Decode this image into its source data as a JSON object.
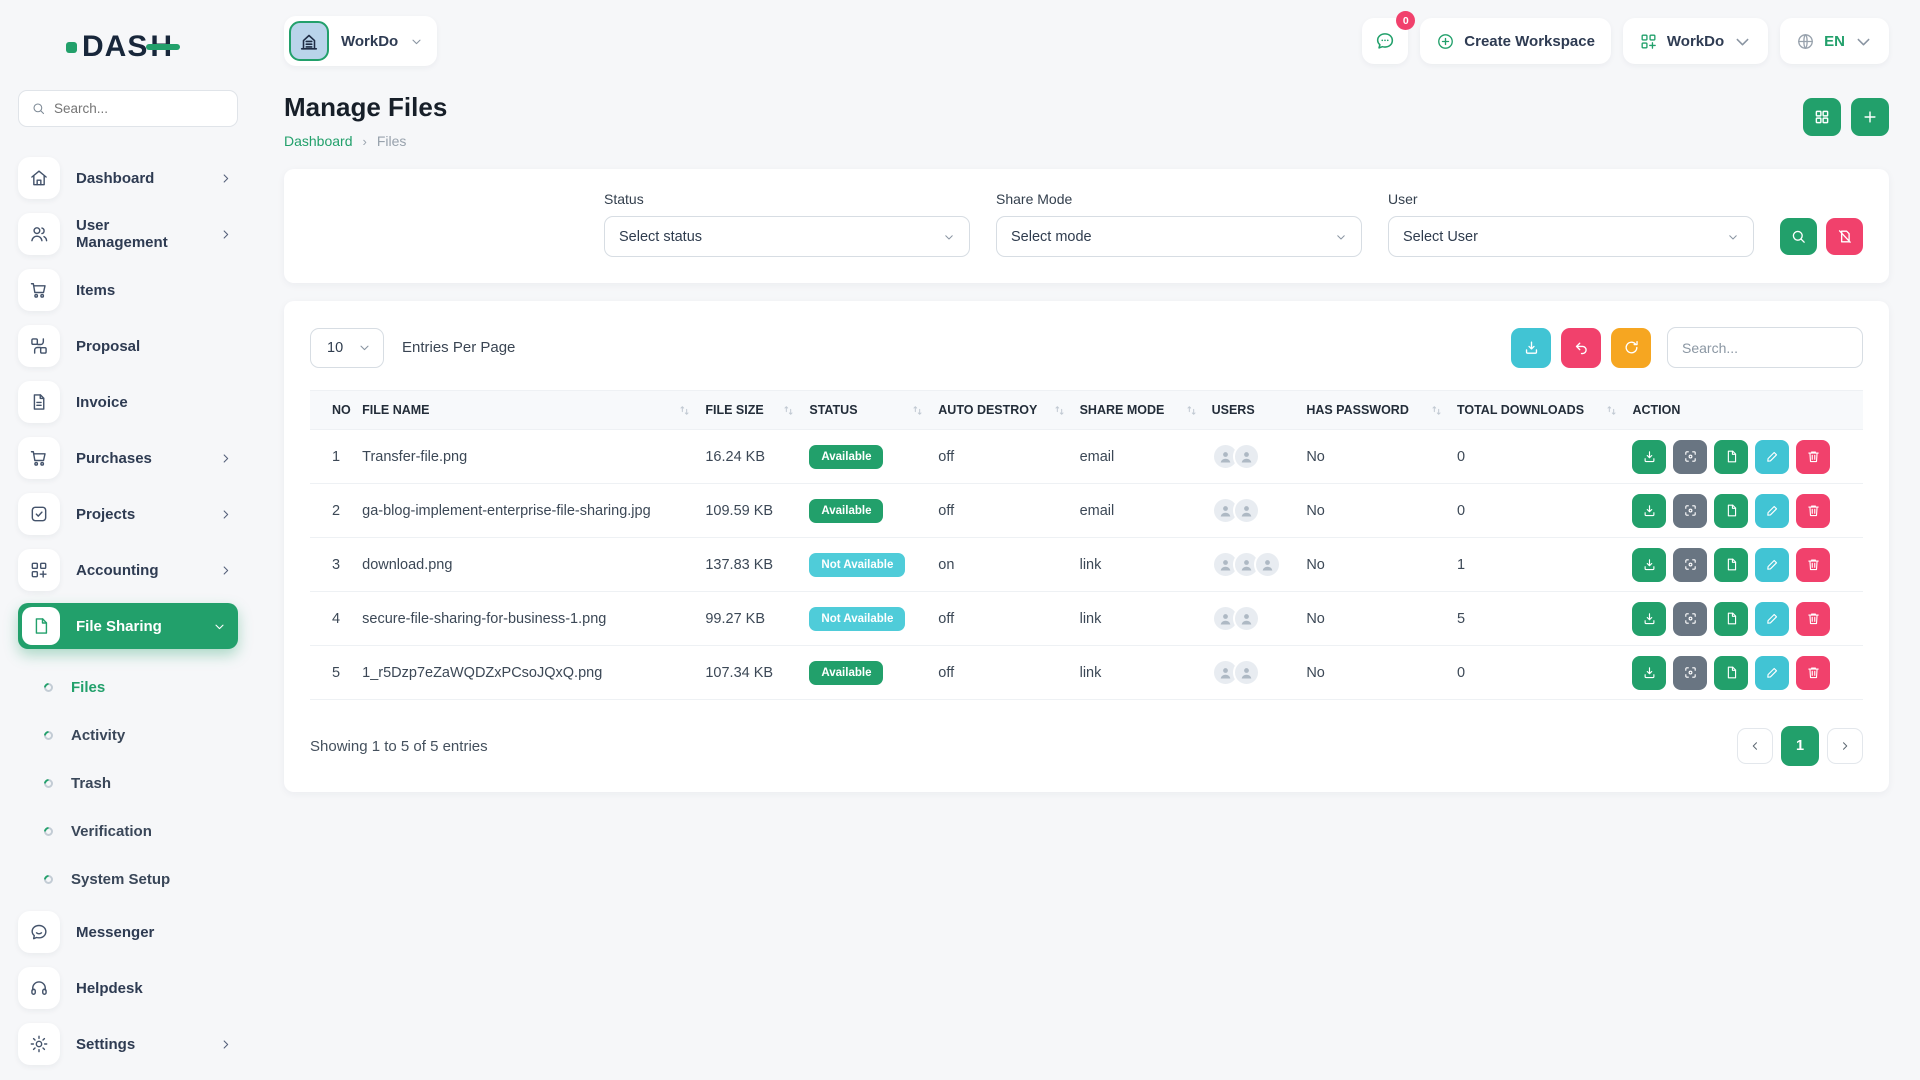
{
  "app": {
    "logo_text_main": "DAS",
    "logo_text_accent": "H"
  },
  "header": {
    "workspace_switcher": {
      "label": "WorkDo"
    },
    "messages_badge": "0",
    "create_workspace_label": "Create Workspace",
    "workdo_menu_label": "WorkDo",
    "language": "EN"
  },
  "sidebar": {
    "search_placeholder": "Search...",
    "items": [
      {
        "label": "Dashboard",
        "icon": "home-icon",
        "has_chevron": true
      },
      {
        "label": "User Management",
        "icon": "users-icon",
        "has_chevron": true
      },
      {
        "label": "Items",
        "icon": "cart-icon",
        "has_chevron": false
      },
      {
        "label": "Proposal",
        "icon": "swap-grid-icon",
        "has_chevron": false
      },
      {
        "label": "Invoice",
        "icon": "document-icon",
        "has_chevron": false
      },
      {
        "label": "Purchases",
        "icon": "cart-icon",
        "has_chevron": true
      },
      {
        "label": "Projects",
        "icon": "check-square-icon",
        "has_chevron": true
      },
      {
        "label": "Accounting",
        "icon": "grid-plus-icon",
        "has_chevron": true
      },
      {
        "label": "File Sharing",
        "icon": "file-icon",
        "has_chevron": true,
        "active": true
      }
    ],
    "file_sharing_sub": [
      {
        "label": "Files",
        "active": true
      },
      {
        "label": "Activity",
        "active": false
      },
      {
        "label": "Trash",
        "active": false
      },
      {
        "label": "Verification",
        "active": false
      },
      {
        "label": "System Setup",
        "active": false
      }
    ],
    "items_bottom": [
      {
        "label": "Messenger",
        "icon": "chat-icon",
        "has_chevron": false
      },
      {
        "label": "Helpdesk",
        "icon": "headset-icon",
        "has_chevron": false
      },
      {
        "label": "Settings",
        "icon": "gear-icon",
        "has_chevron": true
      }
    ]
  },
  "page": {
    "title": "Manage Files",
    "breadcrumb": {
      "home": "Dashboard",
      "separator": "›",
      "current": "Files"
    }
  },
  "filters": {
    "status": {
      "label": "Status",
      "value": "Select status"
    },
    "share_mode": {
      "label": "Share Mode",
      "value": "Select mode"
    },
    "user": {
      "label": "User",
      "value": "Select User"
    }
  },
  "table": {
    "entries_per_page": "10",
    "entries_per_page_label": "Entries Per Page",
    "search_placeholder": "Search...",
    "columns": [
      {
        "label": "NO",
        "sortable": false
      },
      {
        "label": "FILE NAME",
        "sortable": true
      },
      {
        "label": "FILE SIZE",
        "sortable": true
      },
      {
        "label": "STATUS",
        "sortable": true
      },
      {
        "label": "AUTO DESTROY",
        "sortable": true
      },
      {
        "label": "SHARE MODE",
        "sortable": true
      },
      {
        "label": "USERS",
        "sortable": false
      },
      {
        "label": "HAS PASSWORD",
        "sortable": true
      },
      {
        "label": "TOTAL DOWNLOADS",
        "sortable": true
      },
      {
        "label": "ACTION",
        "sortable": false
      }
    ],
    "row_actions": [
      {
        "name": "download",
        "color": "green"
      },
      {
        "name": "preview",
        "color": "gray"
      },
      {
        "name": "copy-link",
        "color": "green"
      },
      {
        "name": "edit",
        "color": "teal"
      },
      {
        "name": "delete",
        "color": "pink"
      }
    ],
    "rows": [
      {
        "no": "1",
        "file_name": "Transfer-file.png",
        "file_size": "16.24 KB",
        "status": "Available",
        "auto_destroy": "off",
        "share_mode": "email",
        "users": 2,
        "has_password": "No",
        "total_downloads": "0"
      },
      {
        "no": "2",
        "file_name": "ga-blog-implement-enterprise-file-sharing.jpg",
        "file_size": "109.59 KB",
        "status": "Available",
        "auto_destroy": "off",
        "share_mode": "email",
        "users": 2,
        "has_password": "No",
        "total_downloads": "0"
      },
      {
        "no": "3",
        "file_name": "download.png",
        "file_size": "137.83 KB",
        "status": "Not Available",
        "auto_destroy": "on",
        "share_mode": "link",
        "users": 3,
        "has_password": "No",
        "total_downloads": "1"
      },
      {
        "no": "4",
        "file_name": "secure-file-sharing-for-business-1.png",
        "file_size": "99.27 KB",
        "status": "Not Available",
        "auto_destroy": "off",
        "share_mode": "link",
        "users": 2,
        "has_password": "No",
        "total_downloads": "5"
      },
      {
        "no": "5",
        "file_name": "1_r5Dzp7eZaWQDZxPCsoJQxQ.png",
        "file_size": "107.34 KB",
        "status": "Available",
        "auto_destroy": "off",
        "share_mode": "link",
        "users": 2,
        "has_password": "No",
        "total_downloads": "0"
      }
    ],
    "footer": {
      "showing_text": "Showing 1 to 5 of 5 entries",
      "current_page": "1"
    }
  },
  "colors": {
    "primary_green": "#22a06b",
    "teal": "#41c4d4",
    "teal_badge": "#4fccd9",
    "pink": "#f1416c",
    "orange": "#f6a621",
    "gray_button": "#697582",
    "navy_text": "#2e3b52",
    "background": "#f6f7f9"
  }
}
